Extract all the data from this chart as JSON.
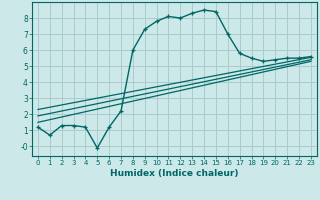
{
  "xlabel": "Humidex (Indice chaleur)",
  "bg_color": "#cce8e8",
  "grid_color": "#aacccc",
  "line_color": "#006666",
  "xlim": [
    -0.5,
    23.5
  ],
  "ylim": [
    -0.6,
    9.0
  ],
  "xticks": [
    0,
    1,
    2,
    3,
    4,
    5,
    6,
    7,
    8,
    9,
    10,
    11,
    12,
    13,
    14,
    15,
    16,
    17,
    18,
    19,
    20,
    21,
    22,
    23
  ],
  "yticks": [
    0,
    1,
    2,
    3,
    4,
    5,
    6,
    7,
    8
  ],
  "ytick_labels": [
    "-0",
    "1",
    "2",
    "3",
    "4",
    "5",
    "6",
    "7",
    "8"
  ],
  "main_curve_x": [
    0,
    1,
    2,
    3,
    4,
    5,
    6,
    7,
    8,
    9,
    10,
    11,
    12,
    13,
    14,
    15,
    16,
    17,
    18,
    19,
    20,
    21,
    22,
    23
  ],
  "main_curve_y": [
    1.2,
    0.7,
    1.3,
    1.3,
    1.2,
    -0.1,
    1.2,
    2.2,
    6.0,
    7.3,
    7.8,
    8.1,
    8.0,
    8.3,
    8.5,
    8.4,
    7.0,
    5.8,
    5.5,
    5.3,
    5.4,
    5.5,
    5.5,
    5.6
  ],
  "line1_x": [
    0,
    23
  ],
  "line1_y": [
    1.5,
    5.3
  ],
  "line2_x": [
    0,
    23
  ],
  "line2_y": [
    1.9,
    5.4
  ],
  "line3_x": [
    0,
    23
  ],
  "line3_y": [
    2.3,
    5.55
  ]
}
